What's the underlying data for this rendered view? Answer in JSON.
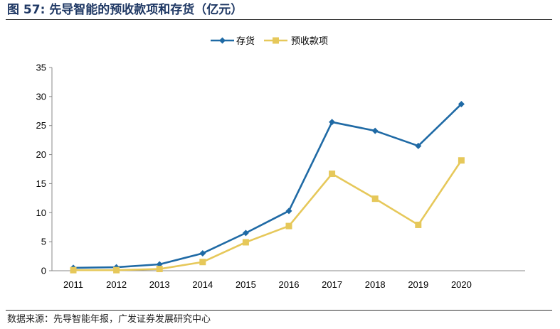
{
  "title": "图 57: 先导智能的预收款项和存货（亿元）",
  "source": "数据来源：先导智能年报，广发证券发展研究中心",
  "chart_data": {
    "type": "line",
    "title": "图 57: 先导智能的预收款项和存货（亿元）",
    "xlabel": "",
    "ylabel": "",
    "categories": [
      "2011",
      "2012",
      "2013",
      "2014",
      "2015",
      "2016",
      "2017",
      "2018",
      "2019",
      "2020"
    ],
    "ylim": [
      0,
      35
    ],
    "yticks": [
      0,
      5,
      10,
      15,
      20,
      25,
      30,
      35
    ],
    "grid": false,
    "legend_position": "top-center",
    "series": [
      {
        "name": "存货",
        "color": "#1f6aa5",
        "marker": "diamond",
        "values": [
          0.5,
          0.6,
          1.1,
          3.0,
          6.5,
          10.3,
          25.6,
          24.1,
          21.5,
          28.7
        ]
      },
      {
        "name": "预收款项",
        "color": "#e6c85a",
        "marker": "square",
        "values": [
          0.1,
          0.1,
          0.3,
          1.5,
          4.9,
          7.7,
          16.7,
          12.4,
          7.9,
          19.0
        ]
      }
    ]
  }
}
